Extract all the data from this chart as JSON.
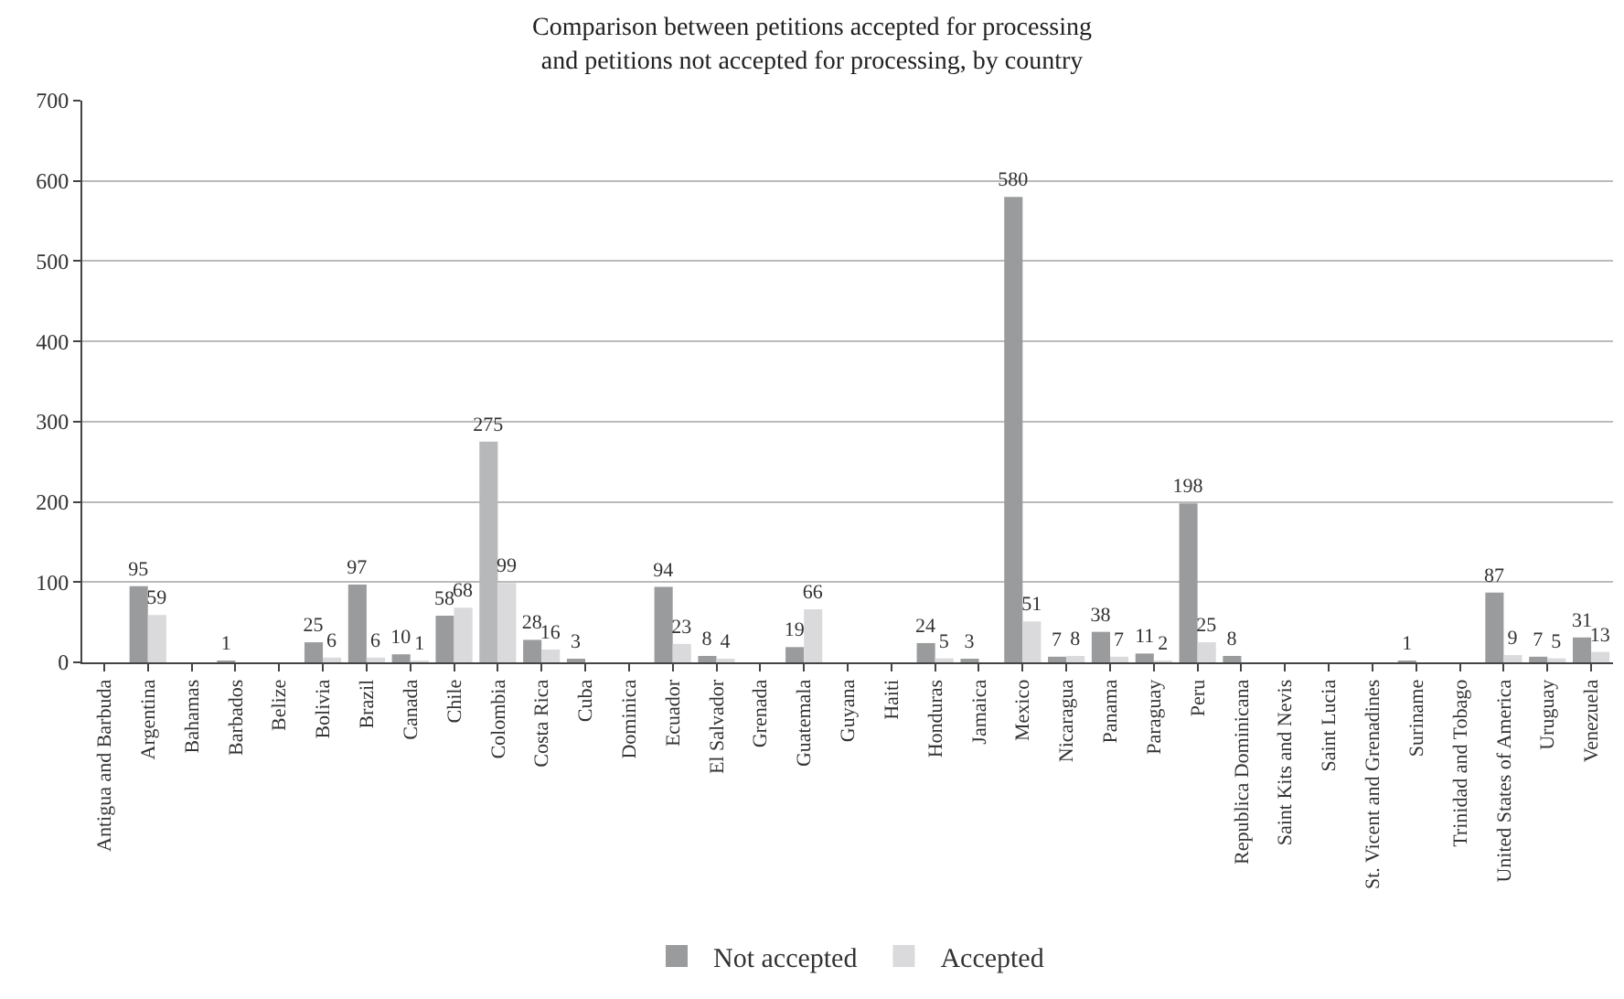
{
  "chart_data": {
    "type": "bar",
    "title": "Comparison between petitions accepted for processing\nand petitions not accepted for processing, by country",
    "categories": [
      "Antigua and Barbuda",
      "Argentina",
      "Bahamas",
      "Barbados",
      "Belize",
      "Bolivia",
      "Brazil",
      "Canada",
      "Chile",
      "Colombia",
      "Costa Rica",
      "Cuba",
      "Dominica",
      "Ecuador",
      "El Salvador",
      "Grenada",
      "Guatemala",
      "Guyana",
      "Haiti",
      "Honduras",
      "Jamaica",
      "Mexico",
      "Nicaragua",
      "Panama",
      "Paraguay",
      "Peru",
      "Republica Dominicana",
      "Saint Kits and Nevis",
      "Saint Lucia",
      "St. Vicent and Grenadines",
      "Suriname",
      "Trinidad and Tobago",
      "United States of America",
      "Uruguay",
      "Venezuela"
    ],
    "series": [
      {
        "name": "Not accepted",
        "color": "#9a9b9d",
        "colors": [
          "#9a9b9d",
          "#9a9b9d",
          "#9a9b9d",
          "#9a9b9d",
          "#9a9b9d",
          "#9a9b9d",
          "#9a9b9d",
          "#9a9b9d",
          "#9a9b9d",
          "#b7b8ba",
          "#9a9b9d",
          "#9a9b9d",
          "#9a9b9d",
          "#9a9b9d",
          "#9a9b9d",
          "#9a9b9d",
          "#9a9b9d",
          "#9a9b9d",
          "#9a9b9d",
          "#9a9b9d",
          "#9a9b9d",
          "#9a9b9d",
          "#9a9b9d",
          "#9a9b9d",
          "#9a9b9d",
          "#9a9b9d",
          "#9a9b9d",
          "#9a9b9d",
          "#9a9b9d",
          "#9a9b9d",
          "#9a9b9d",
          "#9a9b9d",
          "#9a9b9d",
          "#9a9b9d",
          "#9a9b9d"
        ],
        "values": [
          null,
          95,
          null,
          1,
          null,
          25,
          97,
          10,
          58,
          275,
          28,
          3,
          null,
          94,
          8,
          null,
          19,
          null,
          null,
          24,
          3,
          580,
          7,
          38,
          11,
          198,
          8,
          null,
          null,
          null,
          1,
          null,
          87,
          7,
          31
        ]
      },
      {
        "name": "Accepted",
        "color": "#dadadc",
        "values": [
          null,
          59,
          null,
          null,
          null,
          6,
          6,
          1,
          68,
          99,
          16,
          null,
          null,
          23,
          4,
          null,
          66,
          null,
          null,
          5,
          null,
          51,
          8,
          7,
          2,
          25,
          null,
          null,
          null,
          null,
          null,
          null,
          9,
          5,
          13
        ]
      }
    ],
    "ylim": [
      0,
      700
    ],
    "yticks": [
      0,
      100,
      200,
      300,
      400,
      500,
      600,
      700
    ],
    "grid": "y",
    "legend": "bottom",
    "data_labels": true
  }
}
